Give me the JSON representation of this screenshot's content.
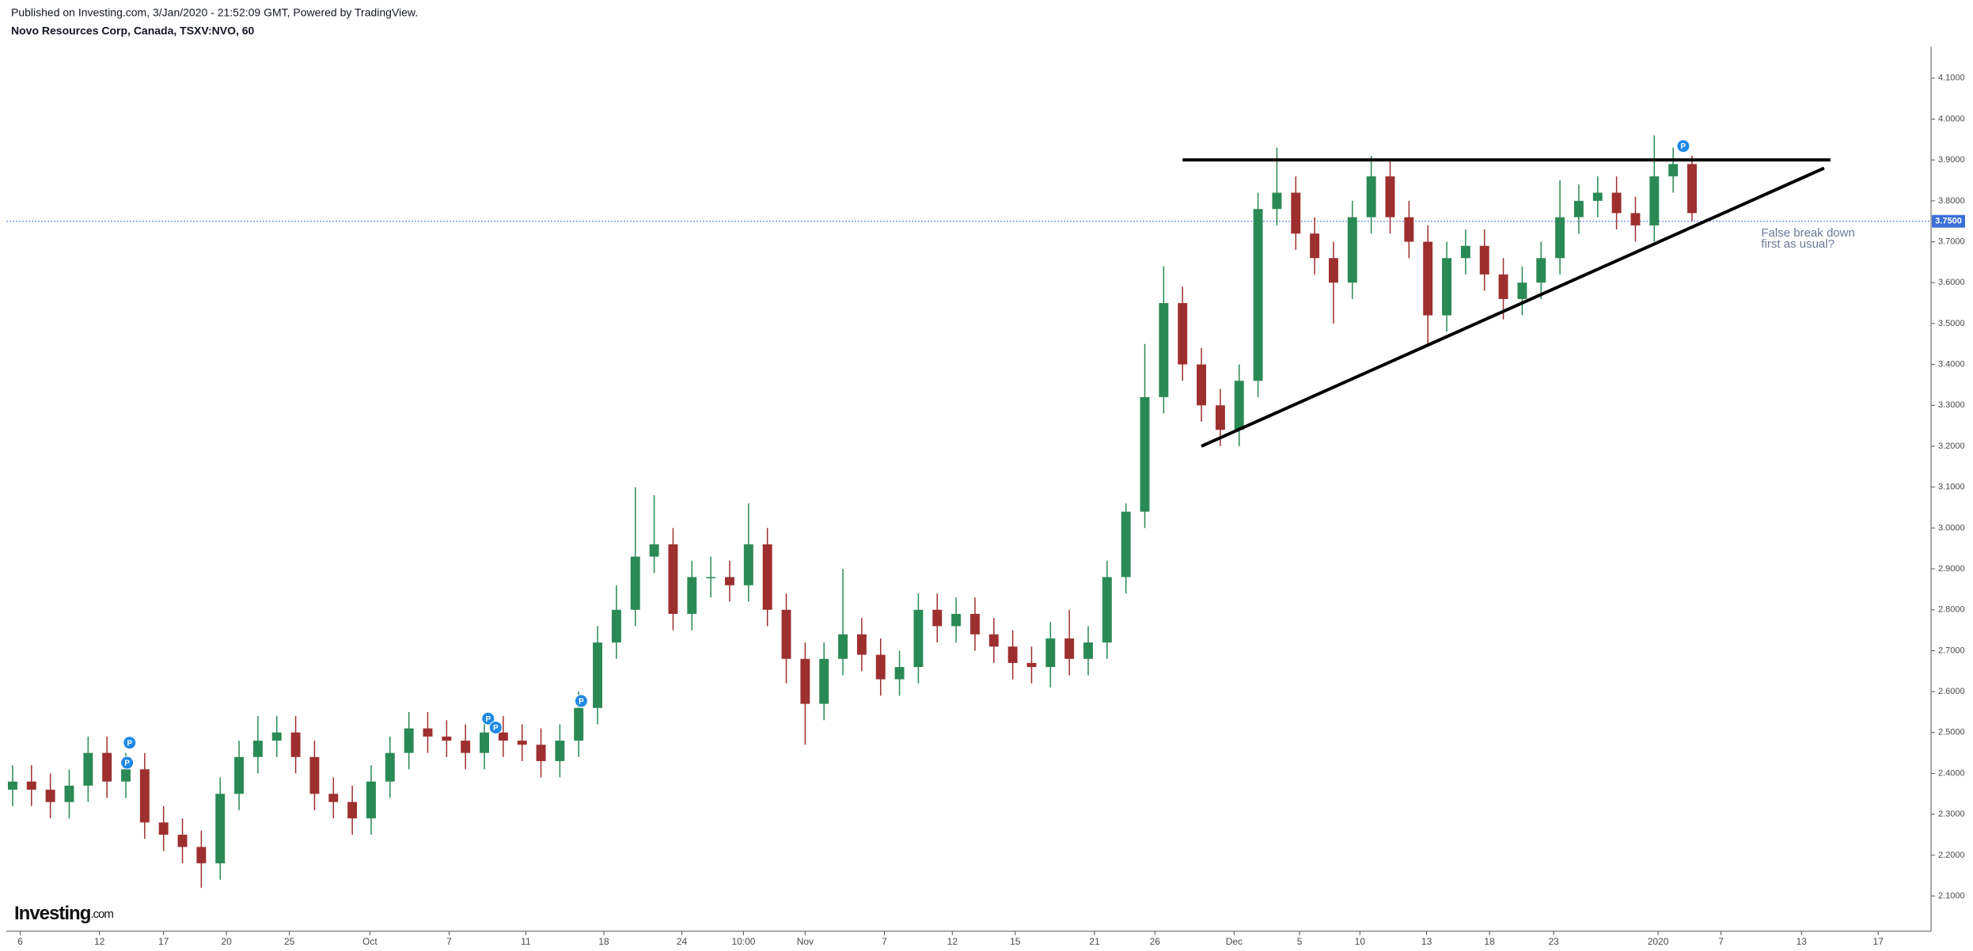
{
  "chart_data": {
    "type": "candlestick",
    "title": "Published on Investing.com, 3/Jan/2020 - 21:52:09 GMT, Powered by TradingView.",
    "subtitle": "Novo Resources Corp, Canada, TSXV:NVO, 60",
    "logo": {
      "name": "Investing",
      "suffix": ".com"
    },
    "x": [
      1,
      4,
      7,
      10,
      13,
      16,
      19,
      22,
      25,
      28,
      31,
      34,
      37,
      40,
      43,
      46,
      49,
      52,
      55,
      58,
      61,
      64,
      67,
      70,
      73,
      76,
      79,
      82,
      85,
      88,
      91,
      94,
      97,
      100,
      103,
      106,
      109,
      112,
      115,
      118,
      121,
      124,
      127,
      130,
      133,
      136,
      139,
      142,
      145,
      148,
      151,
      154,
      157,
      160,
      163,
      166,
      169,
      172,
      175,
      178,
      181,
      184,
      187,
      190,
      193,
      196,
      199,
      202,
      205,
      208,
      211,
      214,
      217,
      220,
      223,
      226,
      229,
      232,
      235,
      238,
      241,
      244,
      247,
      250,
      253,
      256,
      259,
      262,
      265,
      268
    ],
    "open": [
      2.36,
      2.38,
      2.36,
      2.33,
      2.37,
      2.45,
      2.38,
      2.41,
      2.28,
      2.25,
      2.22,
      2.18,
      2.35,
      2.44,
      2.48,
      2.5,
      2.44,
      2.35,
      2.33,
      2.29,
      2.38,
      2.45,
      2.51,
      2.49,
      2.48,
      2.45,
      2.5,
      2.48,
      2.47,
      2.43,
      2.48,
      2.56,
      2.72,
      2.8,
      2.93,
      2.96,
      2.79,
      2.88,
      2.88,
      2.86,
      2.96,
      2.8,
      2.68,
      2.57,
      2.68,
      2.74,
      2.69,
      2.63,
      2.66,
      2.8,
      2.76,
      2.79,
      2.74,
      2.71,
      2.67,
      2.66,
      2.73,
      2.68,
      2.72,
      2.88,
      3.04,
      3.32,
      3.55,
      3.4,
      3.3,
      3.24,
      3.36,
      3.78,
      3.82,
      3.72,
      3.66,
      3.6,
      3.76,
      3.86,
      3.76,
      3.7,
      3.52,
      3.66,
      3.69,
      3.62,
      3.56,
      3.6,
      3.66,
      3.76,
      3.8,
      3.82,
      3.77,
      3.74,
      3.86,
      3.89
    ],
    "high": [
      2.42,
      2.42,
      2.4,
      2.41,
      2.49,
      2.49,
      2.45,
      2.45,
      2.32,
      2.29,
      2.26,
      2.39,
      2.48,
      2.54,
      2.54,
      2.54,
      2.48,
      2.39,
      2.37,
      2.42,
      2.49,
      2.55,
      2.55,
      2.53,
      2.52,
      2.54,
      2.54,
      2.52,
      2.51,
      2.52,
      2.6,
      2.76,
      2.86,
      3.1,
      3.08,
      3.0,
      2.92,
      2.93,
      2.92,
      3.06,
      3.0,
      2.84,
      2.72,
      2.72,
      2.9,
      2.78,
      2.73,
      2.7,
      2.84,
      2.84,
      2.83,
      2.83,
      2.78,
      2.75,
      2.71,
      2.77,
      2.8,
      2.76,
      2.92,
      3.06,
      3.45,
      3.64,
      3.59,
      3.44,
      3.34,
      3.4,
      3.82,
      3.93,
      3.86,
      3.76,
      3.7,
      3.8,
      3.91,
      3.9,
      3.8,
      3.74,
      3.7,
      3.73,
      3.73,
      3.66,
      3.64,
      3.7,
      3.85,
      3.84,
      3.86,
      3.86,
      3.81,
      3.96,
      3.93,
      3.91
    ],
    "low": [
      2.32,
      2.32,
      2.29,
      2.29,
      2.33,
      2.34,
      2.34,
      2.24,
      2.21,
      2.18,
      2.12,
      2.14,
      2.31,
      2.4,
      2.44,
      2.4,
      2.31,
      2.29,
      2.25,
      2.25,
      2.34,
      2.41,
      2.45,
      2.44,
      2.41,
      2.41,
      2.44,
      2.43,
      2.39,
      2.39,
      2.44,
      2.52,
      2.68,
      2.76,
      2.89,
      2.75,
      2.75,
      2.83,
      2.82,
      2.82,
      2.76,
      2.62,
      2.47,
      2.53,
      2.64,
      2.65,
      2.59,
      2.59,
      2.62,
      2.72,
      2.72,
      2.7,
      2.67,
      2.63,
      2.62,
      2.61,
      2.64,
      2.64,
      2.68,
      2.84,
      3.0,
      3.28,
      3.36,
      3.26,
      3.2,
      3.2,
      3.32,
      3.74,
      3.68,
      3.62,
      3.5,
      3.56,
      3.72,
      3.72,
      3.66,
      3.45,
      3.48,
      3.62,
      3.58,
      3.51,
      3.52,
      3.56,
      3.62,
      3.72,
      3.76,
      3.73,
      3.7,
      3.7,
      3.82,
      3.75
    ],
    "close": [
      2.38,
      2.36,
      2.33,
      2.37,
      2.45,
      2.38,
      2.41,
      2.28,
      2.25,
      2.22,
      2.18,
      2.35,
      2.44,
      2.48,
      2.5,
      2.44,
      2.35,
      2.33,
      2.29,
      2.38,
      2.45,
      2.51,
      2.49,
      2.48,
      2.45,
      2.5,
      2.48,
      2.47,
      2.43,
      2.48,
      2.56,
      2.72,
      2.8,
      2.93,
      2.96,
      2.79,
      2.88,
      2.88,
      2.86,
      2.96,
      2.8,
      2.68,
      2.57,
      2.68,
      2.74,
      2.69,
      2.63,
      2.66,
      2.8,
      2.76,
      2.79,
      2.74,
      2.71,
      2.67,
      2.66,
      2.73,
      2.68,
      2.72,
      2.88,
      3.04,
      3.32,
      3.55,
      3.4,
      3.3,
      3.24,
      3.36,
      3.78,
      3.82,
      3.72,
      3.66,
      3.6,
      3.76,
      3.86,
      3.76,
      3.7,
      3.52,
      3.66,
      3.69,
      3.62,
      3.56,
      3.6,
      3.66,
      3.76,
      3.8,
      3.82,
      3.77,
      3.74,
      3.86,
      3.89,
      3.77
    ],
    "up_color": "#2a8a55",
    "down_color": "#9e2f2f",
    "xlim": [
      0,
      306
    ],
    "xticks": [
      {
        "value": 2.2,
        "label": "6"
      },
      {
        "value": 14.8,
        "label": "12"
      },
      {
        "value": 25,
        "label": "17"
      },
      {
        "value": 35,
        "label": "20"
      },
      {
        "value": 45,
        "label": "25"
      },
      {
        "value": 57.8,
        "label": "Oct"
      },
      {
        "value": 70.4,
        "label": "7"
      },
      {
        "value": 82.6,
        "label": "11"
      },
      {
        "value": 95,
        "label": "18"
      },
      {
        "value": 107.4,
        "label": "24"
      },
      {
        "value": 117.2,
        "label": "10:00"
      },
      {
        "value": 127,
        "label": "Nov"
      },
      {
        "value": 139.6,
        "label": "7"
      },
      {
        "value": 150.4,
        "label": "12"
      },
      {
        "value": 160.4,
        "label": "15"
      },
      {
        "value": 173,
        "label": "21"
      },
      {
        "value": 182.6,
        "label": "26"
      },
      {
        "value": 195.2,
        "label": "Dec"
      },
      {
        "value": 205.6,
        "label": "5"
      },
      {
        "value": 215.2,
        "label": "10"
      },
      {
        "value": 225.8,
        "label": "13"
      },
      {
        "value": 235.8,
        "label": "18"
      },
      {
        "value": 246,
        "label": "23"
      },
      {
        "value": 262.6,
        "label": "2020"
      },
      {
        "value": 272.6,
        "label": "7"
      },
      {
        "value": 285.4,
        "label": "13"
      },
      {
        "value": 297.6,
        "label": "17"
      }
    ],
    "ylim": [
      2.014,
      4.177
    ],
    "yticks": [
      {
        "value": 2.1,
        "label": "2.1000"
      },
      {
        "value": 2.2,
        "label": "2.2000"
      },
      {
        "value": 2.3,
        "label": "2.3000"
      },
      {
        "value": 2.4,
        "label": "2.4000"
      },
      {
        "value": 2.5,
        "label": "2.5000"
      },
      {
        "value": 2.6,
        "label": "2.6000"
      },
      {
        "value": 2.7,
        "label": "2.7000"
      },
      {
        "value": 2.8,
        "label": "2.8000"
      },
      {
        "value": 2.9,
        "label": "2.9000"
      },
      {
        "value": 3.0,
        "label": "3.0000"
      },
      {
        "value": 3.1,
        "label": "3.1000"
      },
      {
        "value": 3.2,
        "label": "3.2000"
      },
      {
        "value": 3.3,
        "label": "3.3000"
      },
      {
        "value": 3.4,
        "label": "3.4000"
      },
      {
        "value": 3.5,
        "label": "3.5000"
      },
      {
        "value": 3.6,
        "label": "3.6000"
      },
      {
        "value": 3.7,
        "label": "3.7000"
      },
      {
        "value": 3.8,
        "label": "3.8000"
      },
      {
        "value": 3.9,
        "label": "3.9000"
      },
      {
        "value": 4.0,
        "label": "4.0000"
      },
      {
        "value": 4.1,
        "label": "4.1000"
      }
    ],
    "current_price": {
      "value": 3.75,
      "label": "3.7500"
    },
    "drawings": [
      {
        "x": [
          187,
          290
        ],
        "y": [
          3.9,
          3.9
        ]
      },
      {
        "x": [
          190,
          289
        ],
        "y": [
          3.2,
          3.88
        ]
      }
    ],
    "markers": [
      {
        "x": 19.6,
        "y": 2.475,
        "label": "P"
      },
      {
        "x": 19.2,
        "y": 2.426,
        "label": "P"
      },
      {
        "x": 76.6,
        "y": 2.534,
        "label": "P"
      },
      {
        "x": 77.8,
        "y": 2.512,
        "label": "P"
      },
      {
        "x": 91.4,
        "y": 2.577,
        "label": "P"
      },
      {
        "x": 266.6,
        "y": 3.934,
        "label": "P"
      }
    ],
    "annotation": {
      "x": 279,
      "y": 3.72,
      "lines": [
        "False break down",
        "first as usual?"
      ]
    }
  }
}
